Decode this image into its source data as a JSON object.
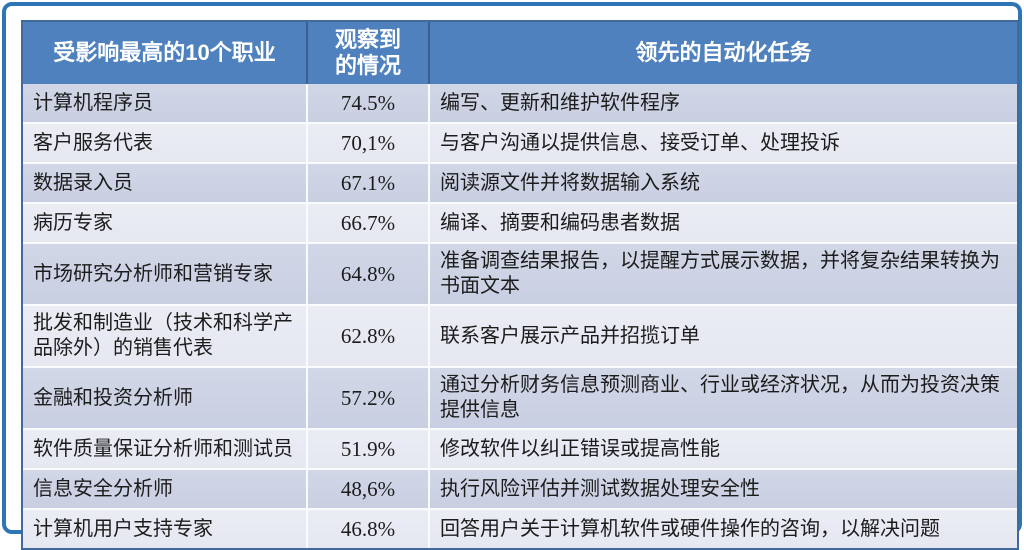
{
  "table": {
    "headers": [
      "受影响最高的10个职业",
      "观察到\n的情况",
      "领先的自动化任务"
    ],
    "rows": [
      {
        "occupation": "计算机程序员",
        "observed": "74.5%",
        "tasks": "编写、更新和维护软件程序"
      },
      {
        "occupation": "客户服务代表",
        "observed": "70,1%",
        "tasks": "与客户沟通以提供信息、接受订单、处理投诉"
      },
      {
        "occupation": "数据录入员",
        "observed": "67.1%",
        "tasks": "阅读源文件并将数据输入系统"
      },
      {
        "occupation": "病历专家",
        "observed": "66.7%",
        "tasks": "编译、摘要和编码患者数据"
      },
      {
        "occupation": "市场研究分析师和营销专家",
        "observed": "64.8%",
        "tasks": "准备调查结果报告，以提醒方式展示数据，并将复杂结果转换为书面文本"
      },
      {
        "occupation": "批发和制造业（技术和科学产品除外）的销售代表",
        "observed": "62.8%",
        "tasks": "联系客户展示产品并招揽订单"
      },
      {
        "occupation": "金融和投资分析师",
        "observed": "57.2%",
        "tasks": "通过分析财务信息预测商业、行业或经济状况，从而为投资决策提供信息"
      },
      {
        "occupation": "软件质量保证分析师和测试员",
        "observed": "51.9%",
        "tasks": "修改软件以纠正错误或提高性能"
      },
      {
        "occupation": "信息安全分析师",
        "observed": "48,6%",
        "tasks": "执行风险评估并测试数据处理安全性"
      },
      {
        "occupation": "计算机用户支持专家",
        "observed": "46.8%",
        "tasks": "回答用户关于计算机软件或硬件操作的咨询，以解决问题"
      }
    ]
  },
  "colors": {
    "header_bg": "#4e81bd",
    "header_separator": "#39618e",
    "row_odd_bg": "#cdd3e4",
    "row_even_bg": "#e9ebf3",
    "table_outline": "#41699c",
    "outer_frame": "#2e75b6",
    "body_text": "#1c1c1c",
    "header_text": "#ffffff"
  }
}
